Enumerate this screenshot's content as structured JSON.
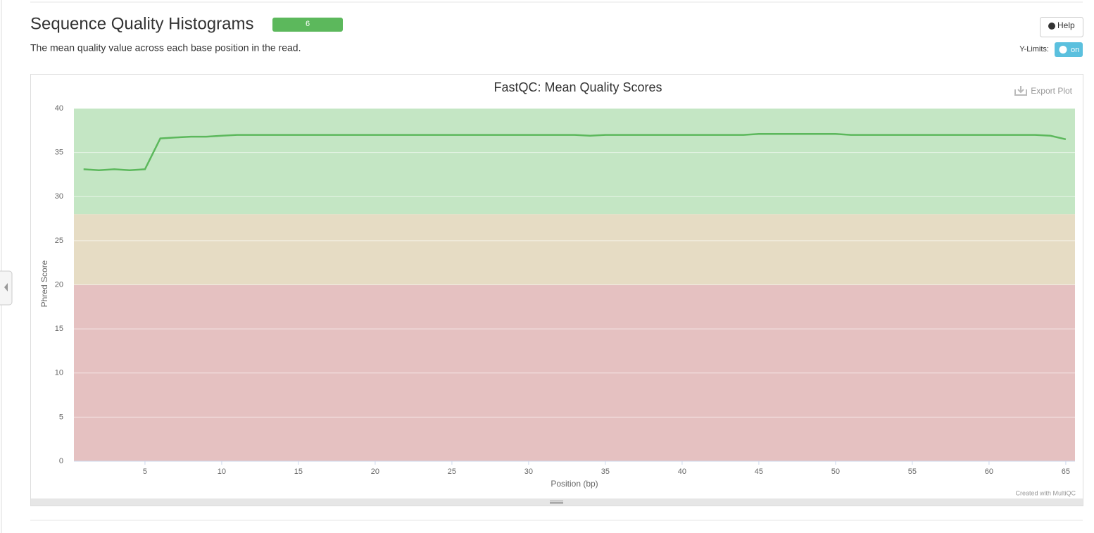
{
  "header": {
    "title": "Sequence Quality Histograms",
    "badge": "6",
    "description": "The mean quality value across each base position in the read.",
    "help": "Help",
    "ylimits_label": "Y-Limits:",
    "ylimits_toggle": "on"
  },
  "chart_data": {
    "type": "line",
    "title": "FastQC: Mean Quality Scores",
    "export": "Export Plot",
    "credit": "Created with MultiQC",
    "x_label": "Position (bp)",
    "y_label": "Phred Score",
    "color": "#5cb85c",
    "x": [
      1,
      2,
      3,
      4,
      5,
      6,
      7,
      8,
      9,
      10,
      11,
      12,
      13,
      14,
      15,
      16,
      17,
      18,
      19,
      20,
      21,
      22,
      23,
      24,
      25,
      26,
      27,
      28,
      29,
      30,
      31,
      32,
      33,
      34,
      35,
      36,
      37,
      38,
      39,
      40,
      41,
      42,
      43,
      44,
      45,
      46,
      47,
      48,
      49,
      50,
      51,
      52,
      53,
      54,
      55,
      56,
      57,
      58,
      59,
      60,
      61,
      62,
      63,
      64,
      65
    ],
    "values": [
      33.1,
      33.0,
      33.1,
      33.0,
      33.1,
      36.6,
      36.7,
      36.8,
      36.8,
      36.9,
      37.0,
      37.0,
      37.0,
      37.0,
      37.0,
      37.0,
      37.0,
      37.0,
      37.0,
      37.0,
      37.0,
      37.0,
      37.0,
      37.0,
      37.0,
      37.0,
      37.0,
      37.0,
      37.0,
      37.0,
      37.0,
      37.0,
      37.0,
      36.9,
      37.0,
      37.0,
      37.0,
      37.0,
      37.0,
      37.0,
      37.0,
      37.0,
      37.0,
      37.0,
      37.1,
      37.1,
      37.1,
      37.1,
      37.1,
      37.1,
      37.0,
      37.0,
      37.0,
      37.0,
      37.0,
      37.0,
      37.0,
      37.0,
      37.0,
      37.0,
      37.0,
      37.0,
      37.0,
      36.9,
      36.5
    ],
    "xlim": [
      0.37,
      65.6
    ],
    "ylim": [
      0,
      40
    ],
    "xticks": [
      5,
      10,
      15,
      20,
      25,
      30,
      35,
      40,
      45,
      50,
      55,
      60,
      65
    ],
    "yticks": [
      0,
      5,
      10,
      15,
      20,
      25,
      30,
      35,
      40
    ],
    "grid": true,
    "bands": [
      {
        "from": 28,
        "to": 40,
        "color": "#c4e6c4"
      },
      {
        "from": 20,
        "to": 28,
        "color": "#e6dcc4"
      },
      {
        "from": 0,
        "to": 20,
        "color": "#e5c1c1"
      }
    ]
  }
}
